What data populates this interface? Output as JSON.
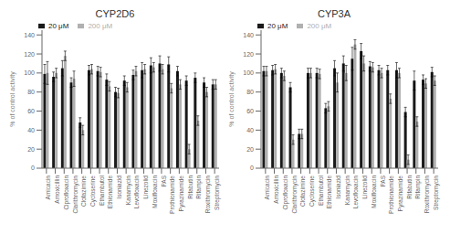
{
  "chart_data": [
    {
      "type": "bar",
      "title": "CYP2D6",
      "ylabel": "% of control activity",
      "categories": [
        "Amicacin",
        "Amoxicillin",
        "Ciprofloxacin",
        "Clarithromycin",
        "Clofazimine",
        "Cycloserine",
        "Ethambutol",
        "Ethionamide",
        "Isoniazid",
        "Kanamycin",
        "Levofloxacin",
        "Linezolid",
        "Moxifloxacin",
        "PAS",
        "Prothionamide",
        "Pyrazinamide",
        "Rifabutin",
        "Rifampin",
        "Roxithromycin",
        "Streptomycin"
      ],
      "series": [
        {
          "name": "20 μM",
          "color": "#1a1a1a",
          "values": [
            99,
            96,
            105,
            90,
            48,
            103,
            102,
            93,
            80,
            92,
            98,
            103,
            108,
            110,
            109,
            102,
            92,
            95,
            90,
            88
          ],
          "errors": [
            10,
            5,
            8,
            5,
            5,
            5,
            5,
            6,
            5,
            5,
            5,
            8,
            8,
            8,
            8,
            5,
            5,
            5,
            5,
            5
          ]
        },
        {
          "name": "200 μM",
          "color": "#b0b0b0",
          "values": [
            100,
            100,
            118,
            94,
            40,
            104,
            101,
            86,
            79,
            85,
            102,
            104,
            106,
            104,
            84,
            88,
            20,
            50,
            80,
            88
          ],
          "errors": [
            12,
            5,
            5,
            8,
            5,
            5,
            5,
            5,
            5,
            5,
            5,
            5,
            5,
            5,
            5,
            5,
            5,
            5,
            5,
            5
          ]
        }
      ],
      "ylim": [
        0,
        145
      ],
      "yticks": [
        0,
        20,
        40,
        60,
        80,
        100,
        120,
        140
      ],
      "legend": "upper left"
    },
    {
      "type": "bar",
      "title": "CYP3A",
      "ylabel": "% of control activity",
      "categories": [
        "Amicacin",
        "Amoxicillin",
        "Ciprofloxacin",
        "Clarithromycin",
        "Clofazimine",
        "Cycloserine",
        "Ethambutol",
        "Ethionamide",
        "Isoniazid",
        "Kanamycin",
        "Levofloxacin",
        "Linezolid",
        "Moxifloxacin",
        "PAS",
        "Prothionamide",
        "Pyrazinamide",
        "Rifabutin",
        "Rifampin",
        "Roxithromycin",
        "Streptomycin"
      ],
      "series": [
        {
          "name": "20 μM",
          "color": "#1a1a1a",
          "values": [
            102,
            103,
            100,
            85,
            36,
            100,
            100,
            63,
            105,
            110,
            115,
            123,
            107,
            103,
            103,
            103,
            59,
            92,
            93,
            101
          ],
          "errors": [
            5,
            5,
            5,
            5,
            5,
            5,
            5,
            5,
            8,
            8,
            12,
            8,
            5,
            5,
            5,
            8,
            5,
            10,
            5,
            5
          ]
        },
        {
          "name": "200 μM",
          "color": "#b0b0b0",
          "values": [
            102,
            104,
            97,
            30,
            36,
            100,
            99,
            65,
            90,
            100,
            130,
            110,
            106,
            100,
            73,
            100,
            9,
            49,
            89,
            92
          ],
          "errors": [
            5,
            5,
            5,
            5,
            5,
            5,
            5,
            5,
            10,
            8,
            5,
            8,
            5,
            5,
            5,
            5,
            5,
            5,
            5,
            5
          ]
        }
      ],
      "ylim": [
        0,
        145
      ],
      "yticks": [
        0,
        20,
        40,
        60,
        80,
        100,
        120,
        140
      ],
      "legend": "upper left"
    }
  ]
}
